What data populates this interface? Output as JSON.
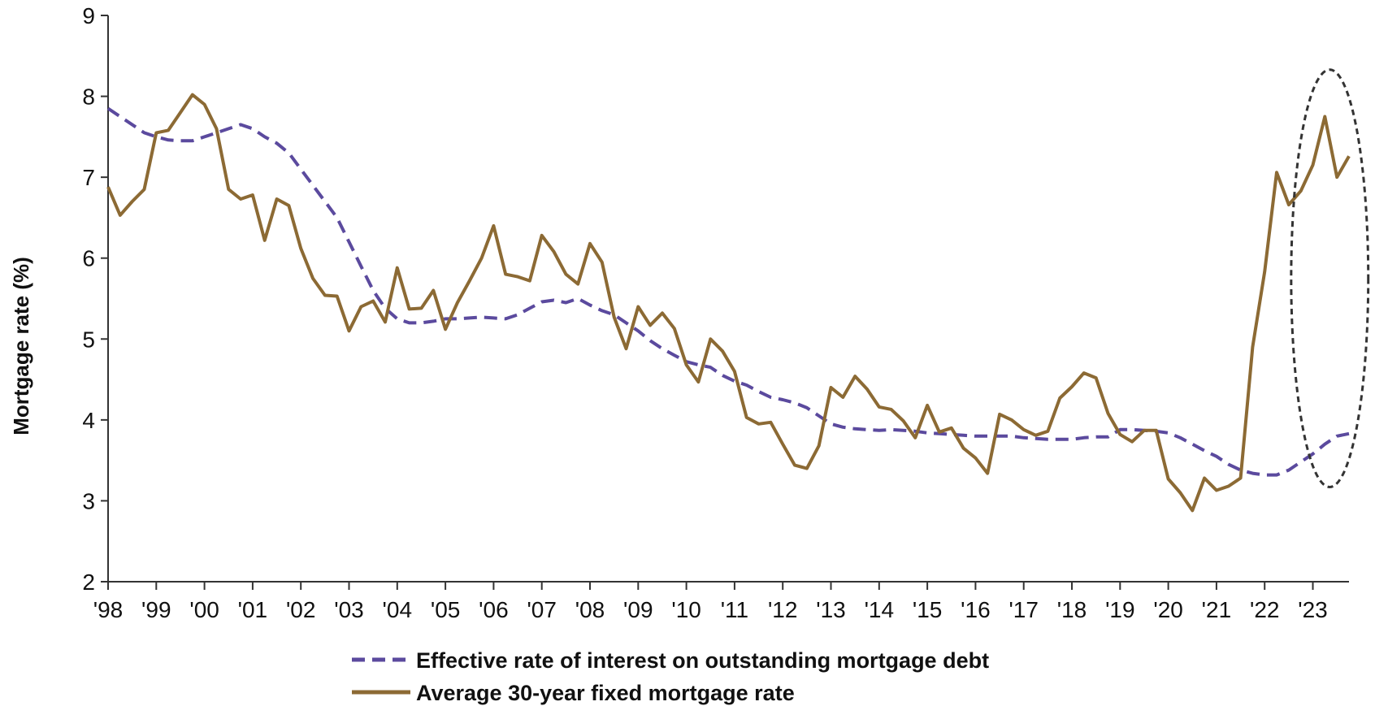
{
  "chart_data": {
    "type": "line",
    "title": "",
    "xlabel": "",
    "ylabel": "Mortgage rate (%)",
    "ylim": [
      2,
      9
    ],
    "xlim": [
      1998.0,
      2023.75
    ],
    "grid": false,
    "legend_position": "bottom-center",
    "y_ticks": [
      "2",
      "3",
      "4",
      "5",
      "6",
      "7",
      "8",
      "9"
    ],
    "x_ticks": [
      {
        "x": 1998,
        "label": "'98"
      },
      {
        "x": 1999,
        "label": "'99"
      },
      {
        "x": 2000,
        "label": "'00"
      },
      {
        "x": 2001,
        "label": "'01"
      },
      {
        "x": 2002,
        "label": "'02"
      },
      {
        "x": 2003,
        "label": "'03"
      },
      {
        "x": 2004,
        "label": "'04"
      },
      {
        "x": 2005,
        "label": "'05"
      },
      {
        "x": 2006,
        "label": "'06"
      },
      {
        "x": 2007,
        "label": "'07"
      },
      {
        "x": 2008,
        "label": "'08"
      },
      {
        "x": 2009,
        "label": "'09"
      },
      {
        "x": 2010,
        "label": "'10"
      },
      {
        "x": 2011,
        "label": "'11"
      },
      {
        "x": 2012,
        "label": "'12"
      },
      {
        "x": 2013,
        "label": "'13"
      },
      {
        "x": 2014,
        "label": "'14"
      },
      {
        "x": 2015,
        "label": "'15"
      },
      {
        "x": 2016,
        "label": "'16"
      },
      {
        "x": 2017,
        "label": "'17"
      },
      {
        "x": 2018,
        "label": "'18"
      },
      {
        "x": 2019,
        "label": "'19"
      },
      {
        "x": 2020,
        "label": "'20"
      },
      {
        "x": 2021,
        "label": "'21"
      },
      {
        "x": 2022,
        "label": "'22"
      },
      {
        "x": 2023,
        "label": "'23"
      }
    ],
    "series": [
      {
        "name": "Effective rate of interest on outstanding mortgage debt",
        "color": "#5b4a9e",
        "style": "dashed",
        "points": [
          [
            1998.0,
            7.85
          ],
          [
            1998.25,
            7.75
          ],
          [
            1998.5,
            7.65
          ],
          [
            1998.75,
            7.55
          ],
          [
            1999.0,
            7.5
          ],
          [
            1999.25,
            7.46
          ],
          [
            1999.5,
            7.45
          ],
          [
            1999.75,
            7.45
          ],
          [
            2000.0,
            7.5
          ],
          [
            2000.25,
            7.55
          ],
          [
            2000.5,
            7.6
          ],
          [
            2000.75,
            7.65
          ],
          [
            2001.0,
            7.6
          ],
          [
            2001.25,
            7.5
          ],
          [
            2001.5,
            7.42
          ],
          [
            2001.75,
            7.3
          ],
          [
            2002.0,
            7.1
          ],
          [
            2002.25,
            6.9
          ],
          [
            2002.5,
            6.7
          ],
          [
            2002.75,
            6.5
          ],
          [
            2003.0,
            6.2
          ],
          [
            2003.25,
            5.9
          ],
          [
            2003.5,
            5.6
          ],
          [
            2003.75,
            5.38
          ],
          [
            2004.0,
            5.25
          ],
          [
            2004.25,
            5.2
          ],
          [
            2004.5,
            5.2
          ],
          [
            2004.75,
            5.22
          ],
          [
            2005.0,
            5.25
          ],
          [
            2005.25,
            5.25
          ],
          [
            2005.5,
            5.26
          ],
          [
            2005.75,
            5.27
          ],
          [
            2006.0,
            5.26
          ],
          [
            2006.25,
            5.25
          ],
          [
            2006.5,
            5.3
          ],
          [
            2006.75,
            5.38
          ],
          [
            2007.0,
            5.46
          ],
          [
            2007.25,
            5.48
          ],
          [
            2007.5,
            5.45
          ],
          [
            2007.75,
            5.5
          ],
          [
            2008.0,
            5.42
          ],
          [
            2008.25,
            5.35
          ],
          [
            2008.5,
            5.3
          ],
          [
            2008.75,
            5.2
          ],
          [
            2009.0,
            5.1
          ],
          [
            2009.25,
            4.98
          ],
          [
            2009.5,
            4.88
          ],
          [
            2009.75,
            4.8
          ],
          [
            2010.0,
            4.72
          ],
          [
            2010.25,
            4.68
          ],
          [
            2010.5,
            4.65
          ],
          [
            2010.75,
            4.55
          ],
          [
            2011.0,
            4.48
          ],
          [
            2011.25,
            4.43
          ],
          [
            2011.5,
            4.35
          ],
          [
            2011.75,
            4.28
          ],
          [
            2012.0,
            4.25
          ],
          [
            2012.25,
            4.21
          ],
          [
            2012.5,
            4.15
          ],
          [
            2012.75,
            4.05
          ],
          [
            2013.0,
            3.95
          ],
          [
            2013.25,
            3.91
          ],
          [
            2013.5,
            3.89
          ],
          [
            2013.75,
            3.88
          ],
          [
            2014.0,
            3.87
          ],
          [
            2014.25,
            3.88
          ],
          [
            2014.5,
            3.87
          ],
          [
            2014.75,
            3.86
          ],
          [
            2015.0,
            3.84
          ],
          [
            2015.25,
            3.83
          ],
          [
            2015.5,
            3.82
          ],
          [
            2015.75,
            3.81
          ],
          [
            2016.0,
            3.8
          ],
          [
            2016.25,
            3.8
          ],
          [
            2016.5,
            3.8
          ],
          [
            2016.75,
            3.8
          ],
          [
            2017.0,
            3.78
          ],
          [
            2017.25,
            3.77
          ],
          [
            2017.5,
            3.76
          ],
          [
            2017.75,
            3.76
          ],
          [
            2018.0,
            3.76
          ],
          [
            2018.25,
            3.78
          ],
          [
            2018.5,
            3.79
          ],
          [
            2018.75,
            3.79
          ],
          [
            2019.0,
            3.88
          ],
          [
            2019.25,
            3.88
          ],
          [
            2019.5,
            3.87
          ],
          [
            2019.75,
            3.86
          ],
          [
            2020.0,
            3.84
          ],
          [
            2020.25,
            3.78
          ],
          [
            2020.5,
            3.7
          ],
          [
            2020.75,
            3.62
          ],
          [
            2021.0,
            3.55
          ],
          [
            2021.25,
            3.45
          ],
          [
            2021.5,
            3.38
          ],
          [
            2021.75,
            3.34
          ],
          [
            2022.0,
            3.32
          ],
          [
            2022.25,
            3.32
          ],
          [
            2022.5,
            3.38
          ],
          [
            2022.75,
            3.48
          ],
          [
            2023.0,
            3.58
          ],
          [
            2023.25,
            3.7
          ],
          [
            2023.5,
            3.8
          ],
          [
            2023.75,
            3.83
          ]
        ]
      },
      {
        "name": "Average 30-year fixed mortgage rate",
        "color": "#8c6a34",
        "style": "solid",
        "points": [
          [
            1998.0,
            6.88
          ],
          [
            1998.25,
            6.53
          ],
          [
            1998.5,
            6.7
          ],
          [
            1998.75,
            6.85
          ],
          [
            1999.0,
            7.55
          ],
          [
            1999.25,
            7.58
          ],
          [
            1999.5,
            7.8
          ],
          [
            1999.75,
            8.02
          ],
          [
            2000.0,
            7.9
          ],
          [
            2000.25,
            7.6
          ],
          [
            2000.5,
            6.85
          ],
          [
            2000.75,
            6.73
          ],
          [
            2001.0,
            6.78
          ],
          [
            2001.25,
            6.22
          ],
          [
            2001.5,
            6.73
          ],
          [
            2001.75,
            6.65
          ],
          [
            2002.0,
            6.12
          ],
          [
            2002.25,
            5.75
          ],
          [
            2002.5,
            5.54
          ],
          [
            2002.75,
            5.53
          ],
          [
            2003.0,
            5.1
          ],
          [
            2003.25,
            5.4
          ],
          [
            2003.5,
            5.47
          ],
          [
            2003.75,
            5.21
          ],
          [
            2004.0,
            5.88
          ],
          [
            2004.25,
            5.37
          ],
          [
            2004.5,
            5.38
          ],
          [
            2004.75,
            5.6
          ],
          [
            2005.0,
            5.12
          ],
          [
            2005.25,
            5.45
          ],
          [
            2005.5,
            5.72
          ],
          [
            2005.75,
            6.0
          ],
          [
            2006.0,
            6.4
          ],
          [
            2006.25,
            5.8
          ],
          [
            2006.5,
            5.77
          ],
          [
            2006.75,
            5.72
          ],
          [
            2007.0,
            6.28
          ],
          [
            2007.25,
            6.08
          ],
          [
            2007.5,
            5.8
          ],
          [
            2007.75,
            5.68
          ],
          [
            2008.0,
            6.18
          ],
          [
            2008.25,
            5.95
          ],
          [
            2008.5,
            5.27
          ],
          [
            2008.75,
            4.88
          ],
          [
            2009.0,
            5.4
          ],
          [
            2009.25,
            5.17
          ],
          [
            2009.5,
            5.32
          ],
          [
            2009.75,
            5.13
          ],
          [
            2010.0,
            4.68
          ],
          [
            2010.25,
            4.47
          ],
          [
            2010.5,
            5.0
          ],
          [
            2010.75,
            4.85
          ],
          [
            2011.0,
            4.6
          ],
          [
            2011.25,
            4.03
          ],
          [
            2011.5,
            3.95
          ],
          [
            2011.75,
            3.97
          ],
          [
            2012.0,
            3.7
          ],
          [
            2012.25,
            3.44
          ],
          [
            2012.5,
            3.4
          ],
          [
            2012.75,
            3.68
          ],
          [
            2013.0,
            4.4
          ],
          [
            2013.25,
            4.28
          ],
          [
            2013.5,
            4.54
          ],
          [
            2013.75,
            4.38
          ],
          [
            2014.0,
            4.16
          ],
          [
            2014.25,
            4.13
          ],
          [
            2014.5,
            3.99
          ],
          [
            2014.75,
            3.78
          ],
          [
            2015.0,
            4.18
          ],
          [
            2015.25,
            3.85
          ],
          [
            2015.5,
            3.9
          ],
          [
            2015.75,
            3.65
          ],
          [
            2016.0,
            3.53
          ],
          [
            2016.25,
            3.34
          ],
          [
            2016.5,
            4.07
          ],
          [
            2016.75,
            4.0
          ],
          [
            2017.0,
            3.88
          ],
          [
            2017.25,
            3.81
          ],
          [
            2017.5,
            3.86
          ],
          [
            2017.75,
            4.27
          ],
          [
            2018.0,
            4.41
          ],
          [
            2018.25,
            4.58
          ],
          [
            2018.5,
            4.52
          ],
          [
            2018.75,
            4.08
          ],
          [
            2019.0,
            3.82
          ],
          [
            2019.25,
            3.73
          ],
          [
            2019.5,
            3.87
          ],
          [
            2019.75,
            3.87
          ],
          [
            2020.0,
            3.27
          ],
          [
            2020.25,
            3.1
          ],
          [
            2020.5,
            2.88
          ],
          [
            2020.75,
            3.28
          ],
          [
            2021.0,
            3.13
          ],
          [
            2021.25,
            3.18
          ],
          [
            2021.5,
            3.28
          ],
          [
            2021.75,
            4.9
          ],
          [
            2022.0,
            5.83
          ],
          [
            2022.25,
            7.06
          ],
          [
            2022.5,
            6.66
          ],
          [
            2022.75,
            6.83
          ],
          [
            2023.0,
            7.15
          ],
          [
            2023.25,
            7.75
          ],
          [
            2023.5,
            7.0
          ],
          [
            2023.75,
            7.26
          ]
        ]
      }
    ],
    "highlight": {
      "shape": "dashed-ellipse",
      "center": [
        2023.35,
        5.75
      ],
      "half_width_years": 0.8,
      "half_height": 2.58,
      "color": "#333333"
    }
  }
}
